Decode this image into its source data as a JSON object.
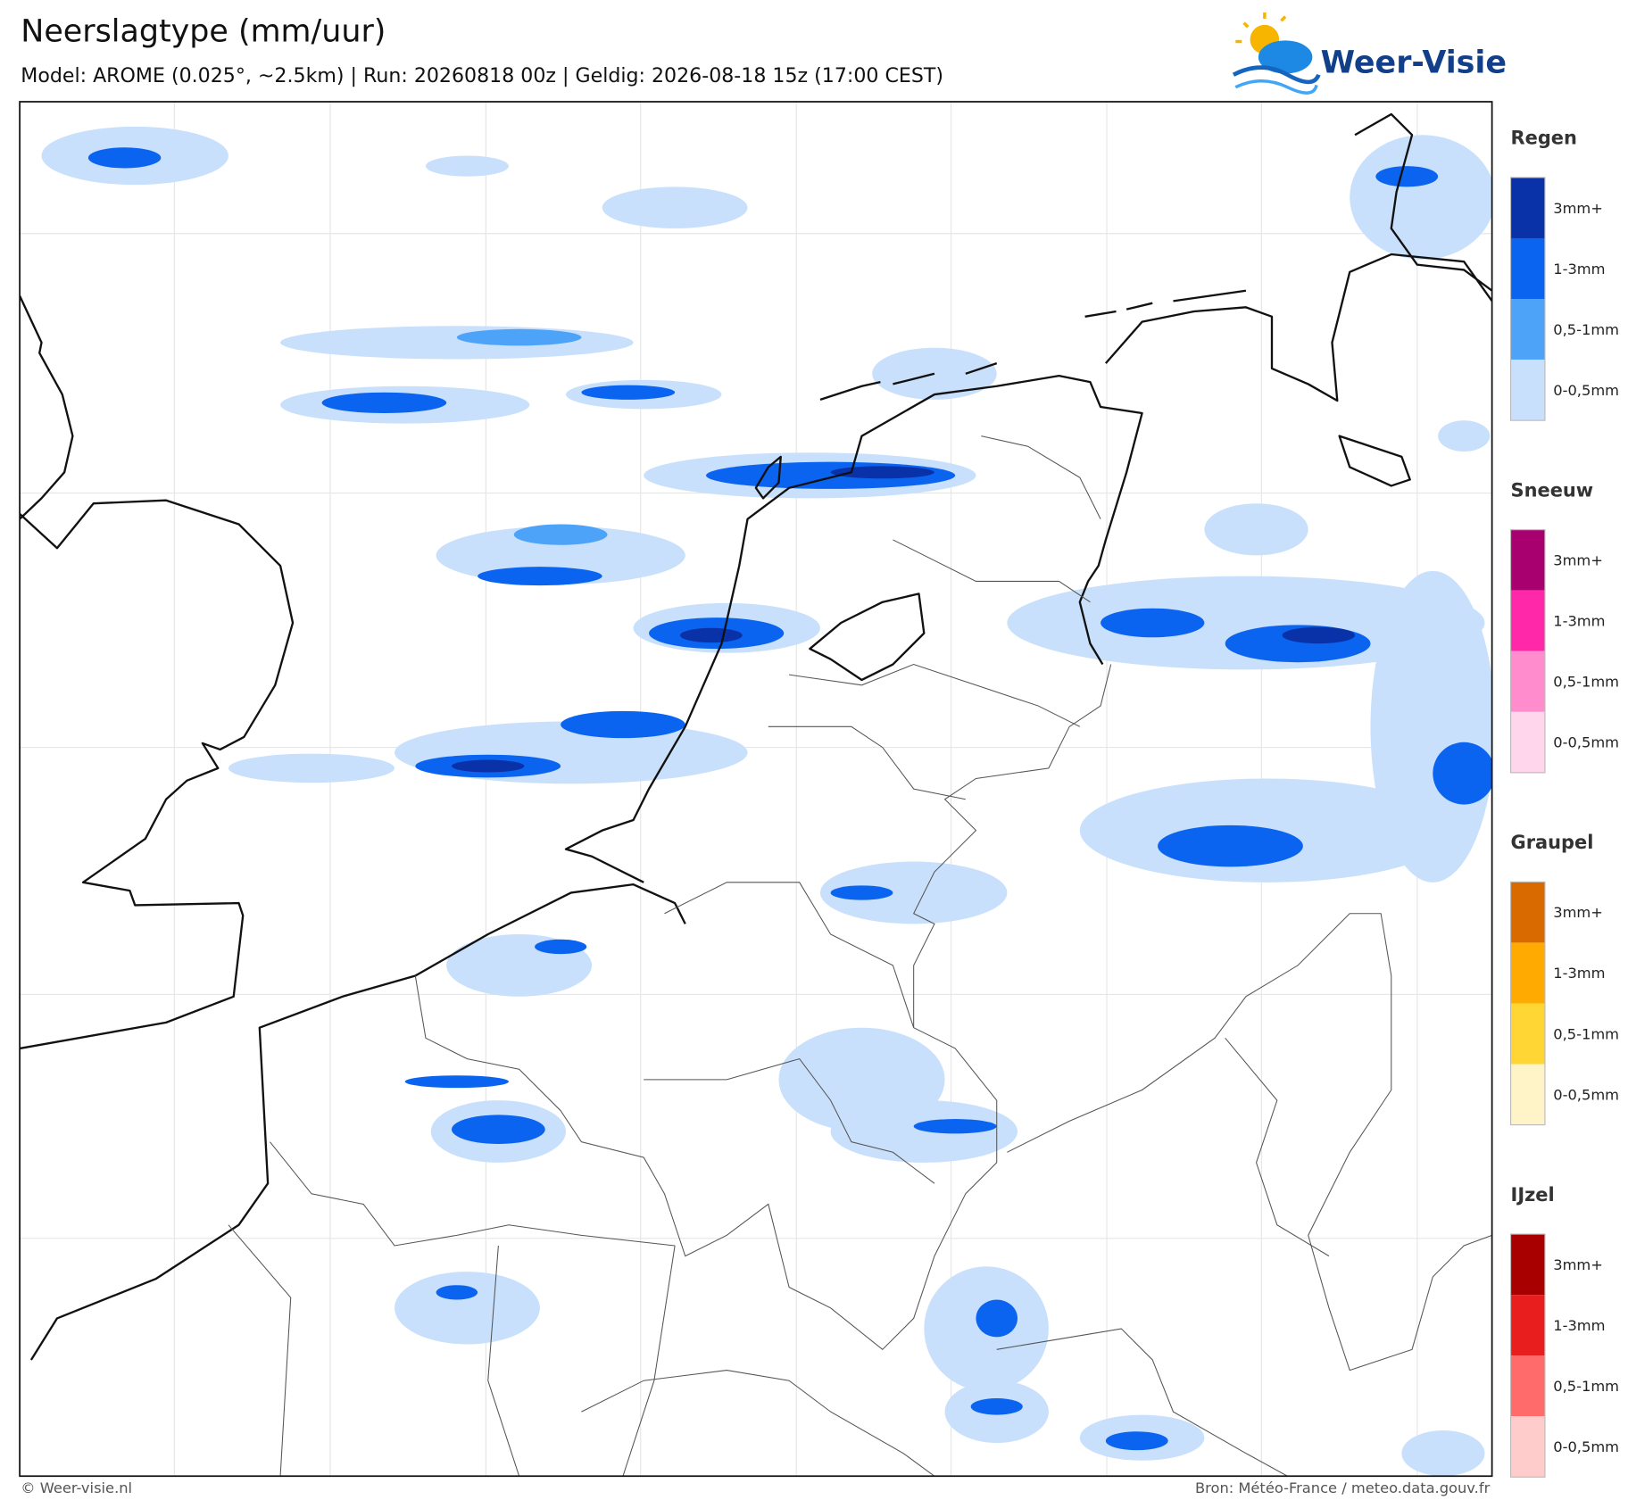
{
  "header": {
    "title": "Neerslagtype (mm/uur)",
    "subtitle": "Model: AROME (0.025°, ~2.5km)  |  Run: 20260818 00z  |  Geldig: 2026-08-18 15z (17:00 CEST)",
    "logo": "Weer-Visie"
  },
  "legend": [
    {
      "title": "Regen",
      "items": [
        {
          "label": "3mm+",
          "color": "#0a32a8"
        },
        {
          "label": "1-3mm",
          "color": "#0a64f0"
        },
        {
          "label": "0,5-1mm",
          "color": "#4da3f7"
        },
        {
          "label": "0-0,5mm",
          "color": "#c8e0fb"
        }
      ]
    },
    {
      "title": "Sneeuw",
      "items": [
        {
          "label": "3mm+",
          "color": "#a8006e"
        },
        {
          "label": "1-3mm",
          "color": "#ff28a8"
        },
        {
          "label": "0,5-1mm",
          "color": "#ff8ccc"
        },
        {
          "label": "0-0,5mm",
          "color": "#ffd6ec"
        }
      ]
    },
    {
      "title": "Graupel",
      "items": [
        {
          "label": "3mm+",
          "color": "#d96a00"
        },
        {
          "label": "1-3mm",
          "color": "#ffaa00"
        },
        {
          "label": "0,5-1mm",
          "color": "#ffd633"
        },
        {
          "label": "0-0,5mm",
          "color": "#fff3c8"
        }
      ]
    },
    {
      "title": "IJzel",
      "items": [
        {
          "label": "3mm+",
          "color": "#a80000"
        },
        {
          "label": "1-3mm",
          "color": "#e81e1e"
        },
        {
          "label": "0,5-1mm",
          "color": "#ff6b6b"
        },
        {
          "label": "0-0,5mm",
          "color": "#ffcccc"
        }
      ]
    }
  ],
  "footer": {
    "left": "© Weer-visie.nl",
    "right": "Bron: Météo-France / meteo.data.gouv.fr"
  }
}
